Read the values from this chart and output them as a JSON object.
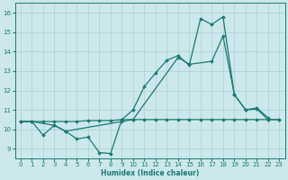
{
  "background_color": "#cce8ec",
  "grid_color": "#aacfd4",
  "line_color": "#1a7a6e",
  "xlabel": "Humidex (Indice chaleur)",
  "xlim": [
    -0.5,
    23.5
  ],
  "ylim": [
    8.5,
    16.5
  ],
  "yticks": [
    9,
    10,
    11,
    12,
    13,
    14,
    15,
    16
  ],
  "xticks": [
    0,
    1,
    2,
    3,
    4,
    5,
    6,
    7,
    8,
    9,
    10,
    11,
    12,
    13,
    14,
    15,
    16,
    17,
    18,
    19,
    20,
    21,
    22,
    23
  ],
  "series1_x": [
    0,
    1,
    2,
    3,
    4,
    5,
    6,
    7,
    8,
    9,
    10,
    11,
    12,
    13,
    14,
    15,
    16,
    17,
    18,
    19,
    20,
    21,
    22
  ],
  "series1_y": [
    10.4,
    10.4,
    9.7,
    10.2,
    9.9,
    9.5,
    9.6,
    8.8,
    8.75,
    10.5,
    11.0,
    12.2,
    12.9,
    13.55,
    13.8,
    13.3,
    15.7,
    15.4,
    15.8,
    11.8,
    11.0,
    11.1,
    10.6
  ],
  "series2_x": [
    0,
    1,
    3,
    4,
    9,
    10,
    14,
    15,
    17,
    18,
    19,
    20,
    21,
    22,
    23
  ],
  "series2_y": [
    10.4,
    10.4,
    10.2,
    9.9,
    10.4,
    10.5,
    13.7,
    13.35,
    13.5,
    14.8,
    11.8,
    11.0,
    11.05,
    10.5,
    10.5
  ],
  "series3_x": [
    0,
    1,
    2,
    3,
    4,
    5,
    6,
    7,
    8,
    9,
    10,
    11,
    12,
    13,
    14,
    15,
    16,
    17,
    18,
    19,
    20,
    21,
    22,
    23
  ],
  "series3_y": [
    10.4,
    10.4,
    10.4,
    10.4,
    10.4,
    10.4,
    10.45,
    10.45,
    10.45,
    10.5,
    10.5,
    10.5,
    10.5,
    10.5,
    10.5,
    10.5,
    10.5,
    10.5,
    10.5,
    10.5,
    10.5,
    10.5,
    10.5,
    10.5
  ]
}
